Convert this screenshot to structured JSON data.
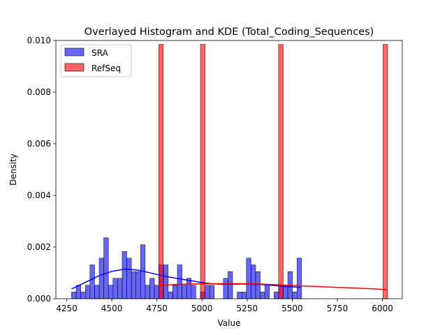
{
  "chart_data": {
    "type": "histogram",
    "title": "Overlayed Histogram and KDE (Total_Coding_Sequences)",
    "xlabel": "Value",
    "ylabel": "Density",
    "xlim": [
      4190,
      6110
    ],
    "ylim": [
      0,
      0.01
    ],
    "x_ticks": [
      4250,
      4500,
      4750,
      5000,
      5250,
      5500,
      5750,
      6000
    ],
    "x_tick_labels": [
      "4250",
      "4500",
      "4750",
      "5000",
      "5250",
      "5500",
      "5750",
      "6000"
    ],
    "y_ticks": [
      0.0,
      0.002,
      0.004,
      0.006,
      0.008,
      0.01
    ],
    "y_tick_labels": [
      "0.000",
      "0.002",
      "0.004",
      "0.006",
      "0.008",
      "0.010"
    ],
    "grid": false,
    "legend_position": "top-left",
    "legend": [
      "SRA",
      "RefSeq"
    ],
    "bin_start": 4277,
    "bin_width": 25.5,
    "series": [
      {
        "name": "SRA",
        "color": "#0000ff",
        "alpha": 0.6,
        "bin_values": [
          0.00026,
          0.00052,
          0.00026,
          0.00052,
          0.00131,
          0.00052,
          0.00157,
          0.00236,
          0.00052,
          0.00079,
          0.00079,
          0.00183,
          0.00157,
          0.00105,
          0.00105,
          0.00209,
          0.00052,
          0.00079,
          0.00052,
          0.00131,
          0.00131,
          0.00026,
          0.00052,
          0.00131,
          0.00052,
          0.00079,
          0.00052,
          0.0,
          0.00026,
          0.00052,
          0.00052,
          0.0,
          0.0,
          0.00079,
          0.00105,
          0.0,
          0.00026,
          0.00026,
          0.00157,
          0.00131,
          0.00105,
          0.00026,
          0.00052,
          0.0,
          0.00026,
          0.00052,
          0.00052,
          0.00105,
          0.00026,
          0.00157
        ],
        "kde_x": [
          4277,
          4350,
          4425,
          4500,
          4575,
          4650,
          4725,
          4800,
          4875,
          4950,
          5025,
          5100,
          5175,
          5250,
          5325,
          5400,
          5475,
          5550
        ],
        "kde_y": [
          0.00038,
          0.00062,
          0.00088,
          0.00106,
          0.00115,
          0.0011,
          0.00098,
          0.00086,
          0.00077,
          0.00068,
          0.0006,
          0.00056,
          0.00056,
          0.00057,
          0.00055,
          0.00051,
          0.00047,
          0.00044
        ]
      },
      {
        "name": "RefSeq",
        "color": "#ff0000",
        "alpha": 0.6,
        "bars": [
          {
            "x": 4773,
            "value": 0.00985
          },
          {
            "x": 5004,
            "value": 0.00985
          },
          {
            "x": 5437,
            "value": 0.00985
          },
          {
            "x": 6016,
            "value": 0.00985
          }
        ],
        "kde_x": [
          4760,
          4850,
          4950,
          5050,
          5150,
          5250,
          5350,
          5450,
          5550,
          5650,
          5750,
          5850,
          5950,
          6025
        ],
        "kde_y": [
          0.00051,
          0.00055,
          0.00057,
          0.00058,
          0.00058,
          0.00058,
          0.00056,
          0.00053,
          0.0005,
          0.00047,
          0.00044,
          0.00041,
          0.00038,
          0.00035
        ]
      }
    ]
  }
}
